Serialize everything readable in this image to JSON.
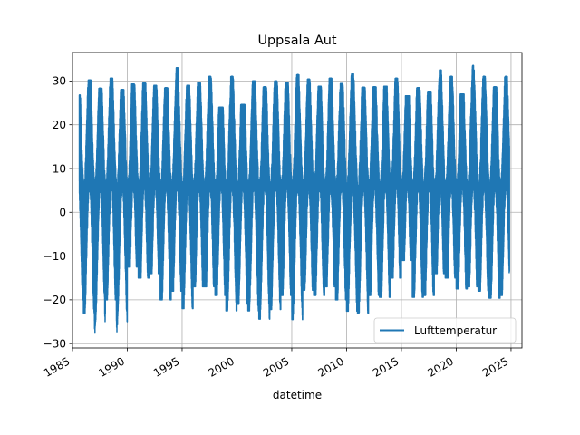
{
  "chart_data": {
    "type": "line",
    "title": "Uppsala Aut",
    "xlabel": "datetime",
    "ylabel": "",
    "x_range": [
      "1985-01-01",
      "2025-12-31"
    ],
    "x_ticks": [
      "1985",
      "1990",
      "1995",
      "2000",
      "2005",
      "2010",
      "2015",
      "2020",
      "2025"
    ],
    "y_range": [
      -31,
      36.5
    ],
    "y_ticks": [
      -30,
      -20,
      -10,
      0,
      10,
      20,
      30
    ],
    "grid": true,
    "legend_position": "lower-right",
    "series": [
      {
        "name": "Lufttemperatur",
        "color": "#1f77b4",
        "annual_extremes": [
          {
            "year": 1985,
            "max": 26.8,
            "min": -20.0
          },
          {
            "year": 1986,
            "max": 30.2,
            "min": -23.0
          },
          {
            "year": 1987,
            "max": 28.3,
            "min": -27.6
          },
          {
            "year": 1988,
            "max": 30.6,
            "min": -20.0
          },
          {
            "year": 1989,
            "max": 28.0,
            "min": -27.3
          },
          {
            "year": 1990,
            "max": 29.3,
            "min": -12.5
          },
          {
            "year": 1991,
            "max": 29.5,
            "min": -15.0
          },
          {
            "year": 1992,
            "max": 29.0,
            "min": -14.0
          },
          {
            "year": 1993,
            "max": 28.4,
            "min": -20.0
          },
          {
            "year": 1994,
            "max": 33.0,
            "min": -18.0
          },
          {
            "year": 1995,
            "max": 29.0,
            "min": -22.0
          },
          {
            "year": 1996,
            "max": 29.7,
            "min": -17.0
          },
          {
            "year": 1997,
            "max": 31.0,
            "min": -17.0
          },
          {
            "year": 1998,
            "max": 24.0,
            "min": -19.0
          },
          {
            "year": 1999,
            "max": 31.0,
            "min": -22.5
          },
          {
            "year": 2000,
            "max": 24.6,
            "min": -21.0
          },
          {
            "year": 2001,
            "max": 30.0,
            "min": -22.5
          },
          {
            "year": 2002,
            "max": 28.6,
            "min": -24.4
          },
          {
            "year": 2003,
            "max": 30.0,
            "min": -22.2
          },
          {
            "year": 2004,
            "max": 29.7,
            "min": -19.0
          },
          {
            "year": 2005,
            "max": 31.4,
            "min": -24.5
          },
          {
            "year": 2006,
            "max": 30.4,
            "min": -17.8
          },
          {
            "year": 2007,
            "max": 28.8,
            "min": -19.0
          },
          {
            "year": 2008,
            "max": 30.6,
            "min": -17.0
          },
          {
            "year": 2009,
            "max": 29.4,
            "min": -20.0
          },
          {
            "year": 2010,
            "max": 31.6,
            "min": -22.6
          },
          {
            "year": 2011,
            "max": 28.5,
            "min": -23.1
          },
          {
            "year": 2012,
            "max": 28.6,
            "min": -19.0
          },
          {
            "year": 2013,
            "max": 28.8,
            "min": -19.4
          },
          {
            "year": 2014,
            "max": 30.6,
            "min": -15.0
          },
          {
            "year": 2015,
            "max": 26.6,
            "min": -11.0
          },
          {
            "year": 2016,
            "max": 28.4,
            "min": -19.4
          },
          {
            "year": 2017,
            "max": 27.6,
            "min": -19.0
          },
          {
            "year": 2018,
            "max": 32.5,
            "min": -14.0
          },
          {
            "year": 2019,
            "max": 31.0,
            "min": -15.0
          },
          {
            "year": 2020,
            "max": 27.0,
            "min": -17.5
          },
          {
            "year": 2021,
            "max": 33.5,
            "min": -17.0
          },
          {
            "year": 2022,
            "max": 31.0,
            "min": -18.0
          },
          {
            "year": 2023,
            "max": 28.6,
            "min": -19.6
          },
          {
            "year": 2024,
            "max": 31.0,
            "min": -19.0
          }
        ]
      }
    ]
  }
}
